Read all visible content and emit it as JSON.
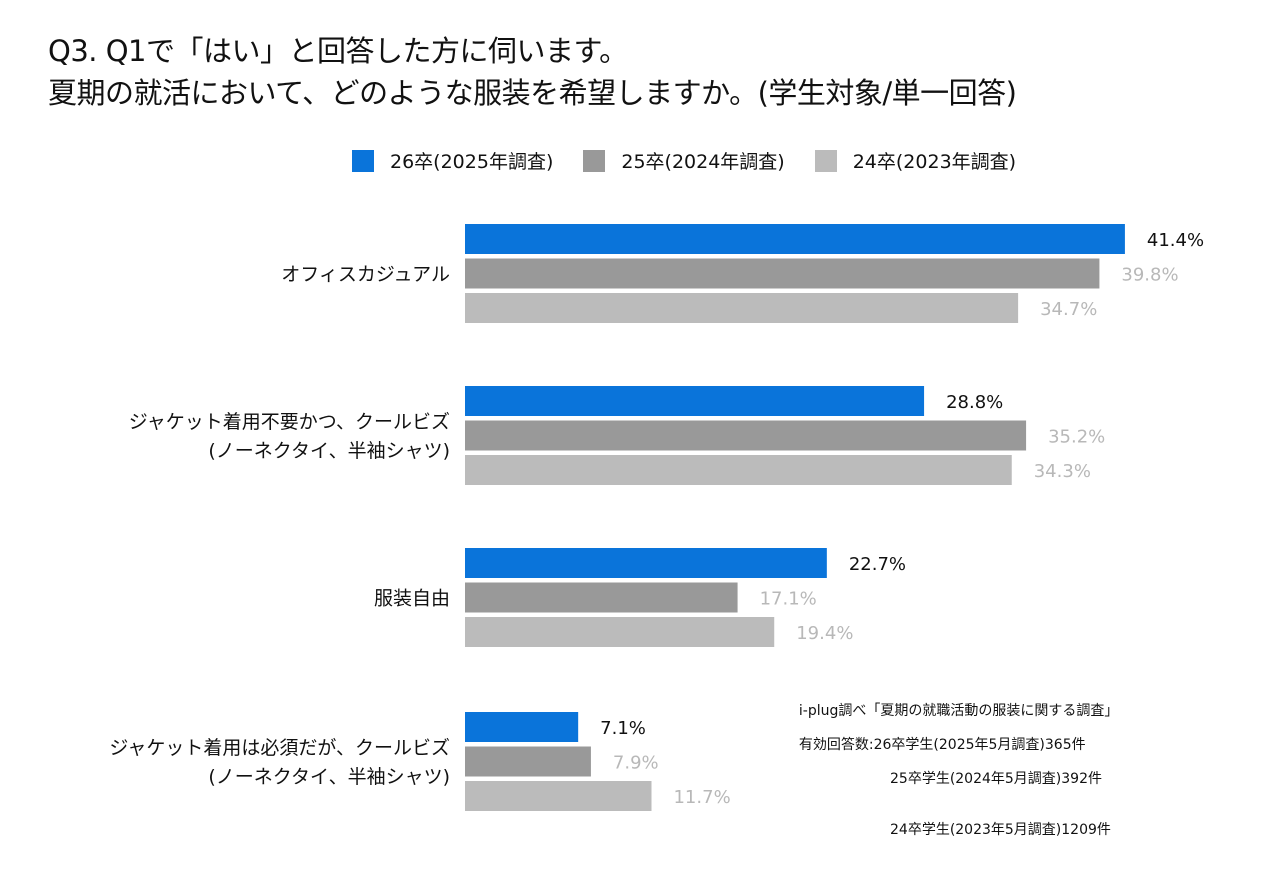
{
  "title": {
    "line1": "Q3. Q1で「はい」と回答した方に伺います。",
    "line2": "夏期の就活において、どのような服装を希望しますか。(学生対象/単一回答)"
  },
  "chart_data": {
    "type": "bar",
    "orientation": "horizontal",
    "categories": [
      [
        "オフィスカジュアル"
      ],
      [
        "ジャケット着用不要かつ、クールビズ",
        "(ノーネクタイ、半袖シャツ)"
      ],
      [
        "服装自由"
      ],
      [
        "ジャケット着用は必須だが、クールビズ",
        "(ノーネクタイ、半袖シャツ)"
      ]
    ],
    "series": [
      {
        "name": "26卒(2025年調査)",
        "color": "#0a74da",
        "label_color": "#111111",
        "values": [
          41.4,
          28.8,
          22.7,
          7.1
        ]
      },
      {
        "name": "25卒(2024年調査)",
        "color": "#999999",
        "label_color": "#b8b8b8",
        "values": [
          39.8,
          35.2,
          17.1,
          7.9
        ]
      },
      {
        "name": "24卒(2023年調査)",
        "color": "#bbbbbb",
        "label_color": "#b8b8b8",
        "values": [
          34.7,
          34.3,
          19.4,
          11.7
        ]
      }
    ],
    "value_suffix": "%",
    "legend": "top",
    "grid": false
  },
  "note": {
    "source": "i-plug調べ「夏期の就職活動の服装に関する調査」",
    "line1": "有効回答数:26卒学生(2025年5月調査)365件",
    "line2": "25卒学生(2024年5月調査)392件",
    "line3": "24卒学生(2023年5月調査)1209件"
  }
}
